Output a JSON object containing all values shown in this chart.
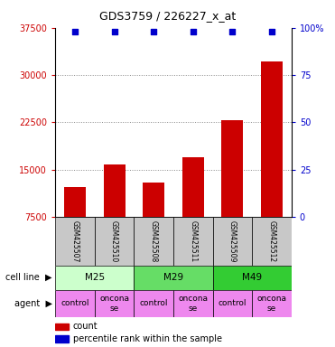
{
  "title": "GDS3759 / 226227_x_at",
  "samples": [
    "GSM425507",
    "GSM425510",
    "GSM425508",
    "GSM425511",
    "GSM425509",
    "GSM425512"
  ],
  "counts": [
    12200,
    15800,
    13000,
    17000,
    22800,
    32200
  ],
  "percentile_ranks": [
    98,
    98,
    98,
    98,
    98,
    98
  ],
  "ylim_left": [
    7500,
    37500
  ],
  "ylim_right": [
    0,
    100
  ],
  "yticks_left": [
    7500,
    15000,
    22500,
    30000,
    37500
  ],
  "yticks_right": [
    0,
    25,
    50,
    75,
    100
  ],
  "bar_color": "#cc0000",
  "dot_color": "#0000cc",
  "cell_lines": [
    {
      "label": "M25",
      "span": [
        0,
        2
      ],
      "color": "#ccffcc"
    },
    {
      "label": "M29",
      "span": [
        2,
        4
      ],
      "color": "#66dd66"
    },
    {
      "label": "M49",
      "span": [
        4,
        6
      ],
      "color": "#33cc33"
    }
  ],
  "agents": [
    {
      "label": "control",
      "span": [
        0,
        1
      ]
    },
    {
      "label": "oncona\nse",
      "span": [
        1,
        2
      ]
    },
    {
      "label": "control",
      "span": [
        2,
        3
      ]
    },
    {
      "label": "oncona\nse",
      "span": [
        3,
        4
      ]
    },
    {
      "label": "control",
      "span": [
        4,
        5
      ]
    },
    {
      "label": "oncona\nse",
      "span": [
        5,
        6
      ]
    }
  ],
  "agent_color": "#ee88ee",
  "sample_bg_color": "#c8c8c8",
  "background_color": "#ffffff",
  "grid_color": "#888888",
  "left_label_color": "#cc0000",
  "right_label_color": "#0000cc",
  "title_fontsize": 9,
  "axis_fontsize": 7,
  "sample_fontsize": 5.5,
  "cell_fontsize": 7.5,
  "agent_fontsize": 6.5,
  "legend_fontsize": 7
}
